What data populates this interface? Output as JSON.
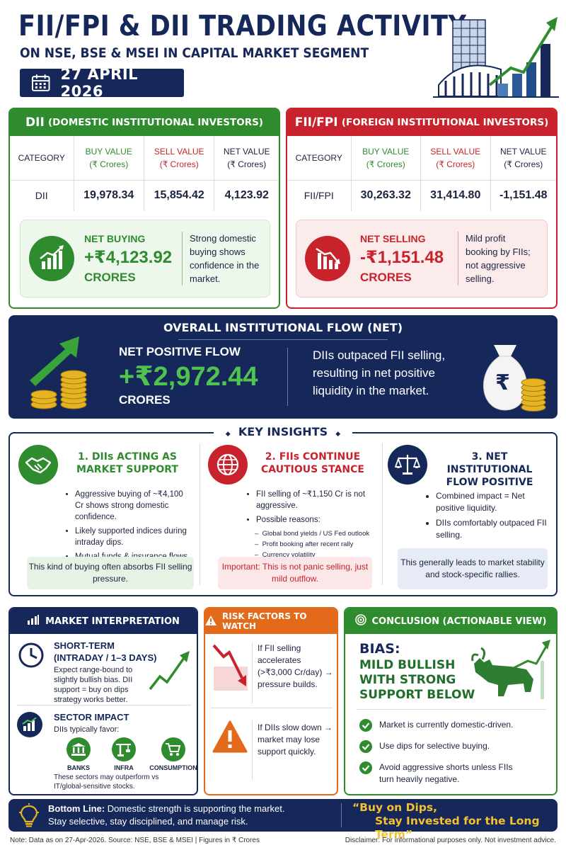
{
  "header": {
    "title": "FII/FPI & DII TRADING ACTIVITY",
    "subtitle": "ON NSE, BSE & MSEI IN CAPITAL MARKET SEGMENT",
    "date": "27 APRIL 2026"
  },
  "dii": {
    "header_abbr": "DII",
    "header_full": "(DOMESTIC INSTITUTIONAL INVESTORS)",
    "columns": [
      "CATEGORY",
      "BUY VALUE",
      "SELL VALUE",
      "NET VALUE"
    ],
    "unit": "(₹ Crores)",
    "row": {
      "category": "DII",
      "buy": "19,978.34",
      "sell": "15,854.42",
      "net": "4,123.92"
    },
    "summary_label": "NET BUYING",
    "summary_value": "+₹4,123.92",
    "summary_unit": "CRORES",
    "summary_text": "Strong domestic buying shows confidence in the market.",
    "color": "#2e8b2e"
  },
  "fii": {
    "header_abbr": "FII/FPI",
    "header_full": "(FOREIGN INSTITUTIONAL INVESTORS)",
    "columns": [
      "CATEGORY",
      "BUY VALUE",
      "SELL VALUE",
      "NET VALUE"
    ],
    "unit": "(₹ Crores)",
    "row": {
      "category": "FII/FPI",
      "buy": "30,263.32",
      "sell": "31,414.80",
      "net": "-1,151.48"
    },
    "summary_label": "NET SELLING",
    "summary_value": "-₹1,151.48",
    "summary_unit": "CRORES",
    "summary_text": "Mild profit booking by FIIs; not aggressive selling.",
    "color": "#c8232c"
  },
  "overall": {
    "heading": "OVERALL INSTITUTIONAL FLOW (NET)",
    "label": "NET POSITIVE FLOW",
    "value": "+₹2,972.44",
    "unit": "CRORES",
    "text": "DIIs outpaced FII selling, resulting in net positive liquidity in the market.",
    "rupee": "₹"
  },
  "insights": {
    "heading": "KEY INSIGHTS",
    "items": [
      {
        "title_line1": "1. DIIs ACTING AS",
        "title_line2": "MARKET SUPPORT",
        "bullets": [
          "Aggressive buying of ~₹4,100 Cr shows strong domestic confidence.",
          "Likely supported indices during intraday dips.",
          "Mutual funds & insurance flows remain strong."
        ],
        "note": "This kind of buying often absorbs FII selling pressure.",
        "icon": "handshake-icon"
      },
      {
        "title_line1": "2. FIIs CONTINUE",
        "title_line2": "CAUTIOUS STANCE",
        "bullets": [
          "FII selling of ~₹1,150 Cr is not aggressive.",
          "Possible reasons:"
        ],
        "sub_bullets": [
          "Global bond yields / US Fed outlook",
          "Profit booking after recent rally",
          "Currency volatility"
        ],
        "note": "Important: This is not panic selling, just mild outflow.",
        "icon": "globe-icon"
      },
      {
        "title_line1": "3. NET INSTITUTIONAL",
        "title_line2": "FLOW POSITIVE",
        "bullets": [
          "Combined impact = Net positive liquidity.",
          "DIIs comfortably outpaced FII selling."
        ],
        "note": "This generally leads to market stability and stock-specific rallies.",
        "icon": "scales-icon"
      }
    ]
  },
  "market": {
    "heading": "MARKET INTERPRETATION",
    "short_term_title_1": "SHORT-TERM",
    "short_term_title_2": "(INTRADAY / 1–3 DAYS)",
    "short_term_text": "Expect range-bound to slightly bullish bias. DII support = buy on dips strategy works better.",
    "sector_title": "SECTOR IMPACT",
    "sector_sub": "DIIs typically favor:",
    "sectors": [
      "BANKS",
      "INFRA",
      "CONSUMPTION"
    ],
    "sector_note": "These sectors may outperform vs IT/global-sensitive stocks."
  },
  "risk": {
    "heading": "RISK FACTORS TO WATCH",
    "item1": "If FII selling accelerates (>₹3,000 Cr/day) → pressure builds.",
    "item2": "If DIIs slow down → market may lose support quickly."
  },
  "conclusion": {
    "heading": "CONCLUSION (ACTIONABLE VIEW)",
    "bias_label": "BIAS:",
    "bias_line1": "MILD BULLISH",
    "bias_line2": "WITH STRONG",
    "bias_line3": "SUPPORT BELOW",
    "checks": [
      "Market is currently domestic-driven.",
      "Use dips for selective buying.",
      "Avoid aggressive shorts unless FIIs turn heavily negative."
    ]
  },
  "bottom_line": {
    "label": "Bottom Line:",
    "text1": "Domestic strength is supporting the market.",
    "text2": "Stay selective, stay disciplined, and manage risk.",
    "quote1": "“Buy on Dips,",
    "quote2": "Stay Invested for the Long Term”"
  },
  "footer": {
    "left": "Note: Data as on 27-Apr-2026. Source: NSE, BSE & MSEI  |  Figures in ₹ Crores",
    "right": "Disclaimer: For informational purposes only. Not investment advice."
  }
}
